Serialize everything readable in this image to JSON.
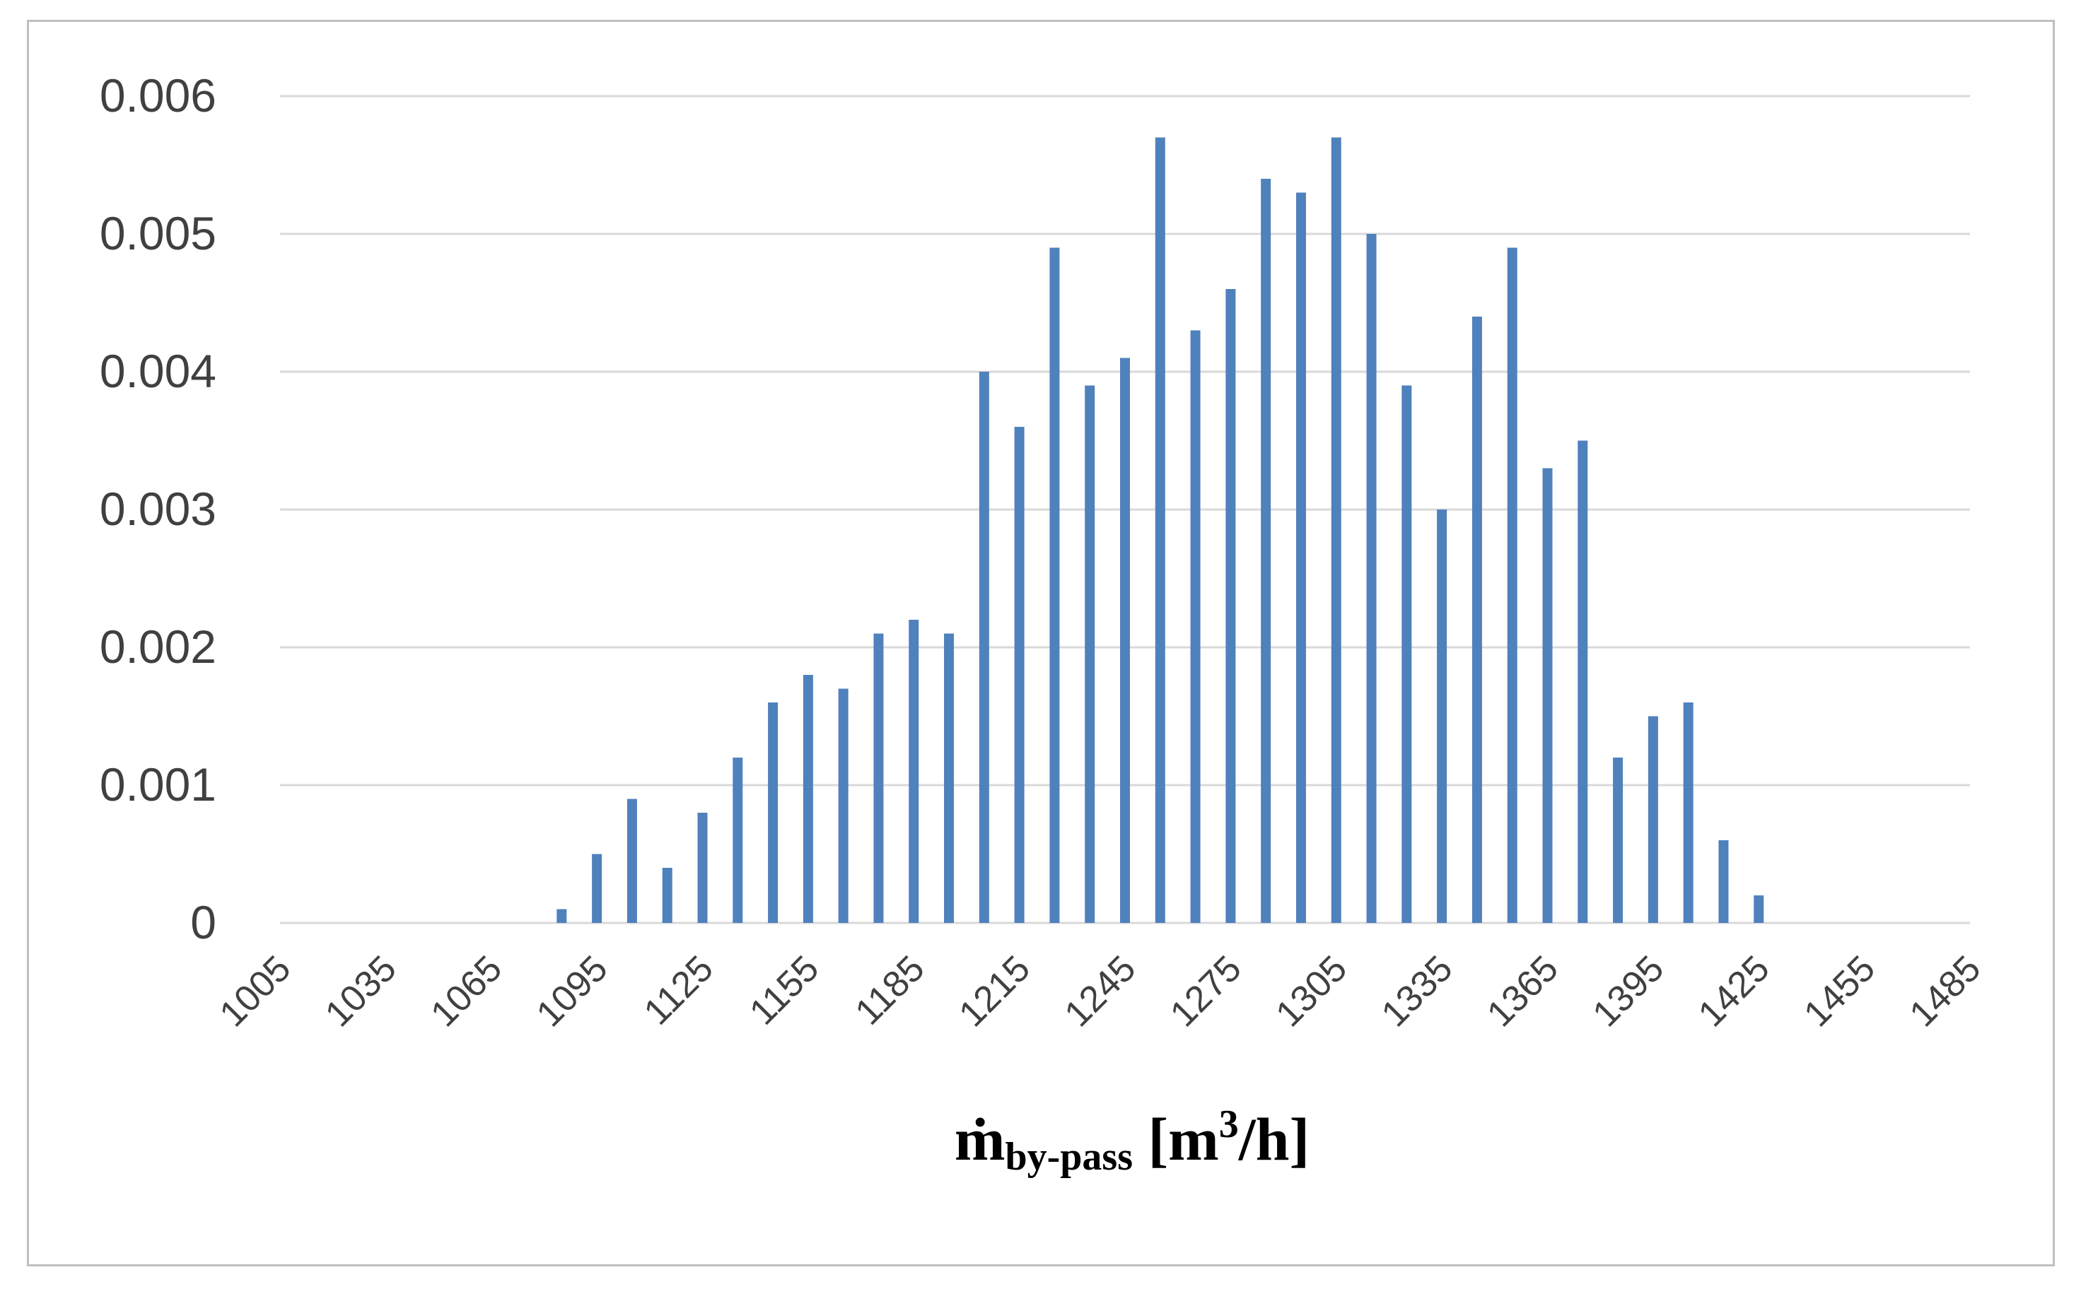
{
  "chart_data": {
    "type": "bar",
    "title": "",
    "xlabel": {
      "main": "ṁ",
      "subscript": "by-pass",
      "unit_prefix": " [m",
      "unit_superscript": "3",
      "unit_suffix": "/h]"
    },
    "ylabel": "",
    "ylim": [
      0,
      0.006
    ],
    "y_ticks": [
      "0",
      "0.001",
      "0.002",
      "0.003",
      "0.004",
      "0.005",
      "0.006"
    ],
    "x_tick_labels": [
      "1005",
      "1035",
      "1065",
      "1095",
      "1125",
      "1155",
      "1185",
      "1215",
      "1245",
      "1275",
      "1305",
      "1335",
      "1365",
      "1395",
      "1425",
      "1455",
      "1485"
    ],
    "categories": [
      1005,
      1015,
      1025,
      1035,
      1045,
      1055,
      1065,
      1075,
      1085,
      1095,
      1105,
      1115,
      1125,
      1135,
      1145,
      1155,
      1165,
      1175,
      1185,
      1195,
      1205,
      1215,
      1225,
      1235,
      1245,
      1255,
      1265,
      1275,
      1285,
      1295,
      1305,
      1315,
      1325,
      1335,
      1345,
      1355,
      1365,
      1375,
      1385,
      1395,
      1405,
      1415,
      1425,
      1435,
      1445,
      1455,
      1465,
      1475,
      1485
    ],
    "values": [
      0,
      0,
      0,
      0,
      0,
      0,
      0,
      0,
      0.0001,
      0.0005,
      0.0009,
      0.0004,
      0.0008,
      0.0012,
      0.0016,
      0.0018,
      0.0017,
      0.0021,
      0.0022,
      0.0021,
      0.004,
      0.0036,
      0.0049,
      0.0039,
      0.0041,
      0.0057,
      0.0043,
      0.0046,
      0.0054,
      0.0053,
      0.0057,
      0.005,
      0.0039,
      0.003,
      0.0044,
      0.0049,
      0.0033,
      0.0035,
      0.0012,
      0.0015,
      0.0016,
      0.0006,
      0.0002,
      0,
      0,
      0,
      0,
      0,
      0
    ],
    "grid": true,
    "legend": "none",
    "colors": {
      "bar": "#4f81bd",
      "grid": "#d9d9d9",
      "text": "#404040"
    }
  }
}
